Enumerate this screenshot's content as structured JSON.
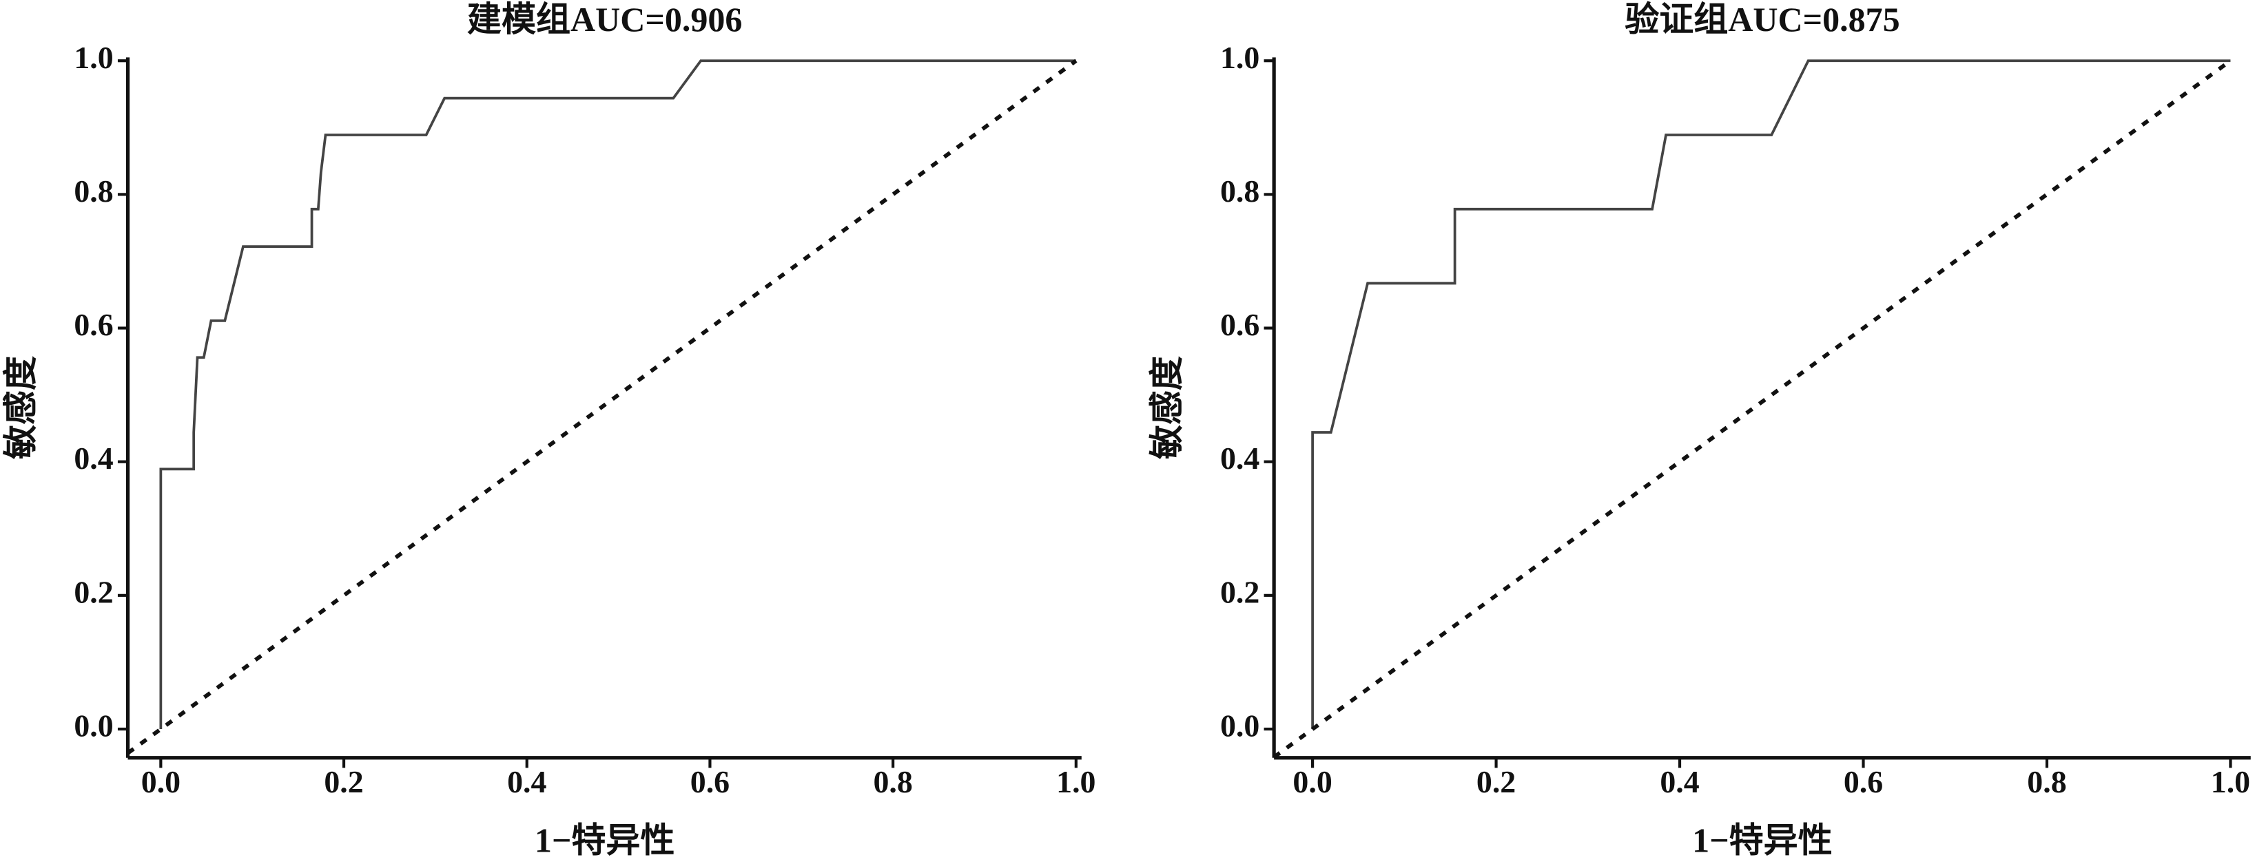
{
  "chart_data": [
    {
      "type": "line",
      "title": "建模组AUC=0.906",
      "x_label": "1−特异性",
      "y_label": "敏感度",
      "xlim": [
        -0.036,
        1.006
      ],
      "ylim": [
        -0.043,
        1.005
      ],
      "xticks": [
        {
          "value": 0,
          "label": "0.0"
        },
        0.2,
        0.4,
        0.6,
        0.8,
        {
          "value": 1,
          "label": "1.0"
        }
      ],
      "yticks": [
        {
          "value": 0,
          "label": "0.0"
        },
        0.2,
        0.4,
        0.6,
        0.8,
        {
          "value": 1,
          "label": "1.0"
        }
      ],
      "series": [
        {
          "color": "#444444",
          "style": "solid",
          "x": [
            0,
            0,
            0.036,
            0.036,
            0.04,
            0.047,
            0.055,
            0.07,
            0.09,
            0.165,
            0.165,
            0.172,
            0.175,
            0.18,
            0.29,
            0.31,
            0.56,
            0.59,
            1
          ],
          "values": [
            0,
            0.389,
            0.389,
            0.444,
            0.556,
            0.556,
            0.611,
            0.611,
            0.722,
            0.722,
            0.778,
            0.778,
            0.833,
            0.889,
            0.889,
            0.944,
            0.944,
            1,
            1
          ]
        },
        {
          "color": "#111111",
          "style": "dashed",
          "x": [
            -0.036,
            1
          ],
          "values": [
            -0.036,
            1
          ]
        }
      ]
    },
    {
      "type": "line",
      "title": "验证组AUC=0.875",
      "x_label": "1−特异性",
      "y_label": "敏感度",
      "xlim": [
        -0.042,
        1.022
      ],
      "ylim": [
        -0.043,
        1.005
      ],
      "xticks": [
        {
          "value": 0,
          "label": "0.0"
        },
        0.2,
        0.4,
        0.6,
        0.8,
        {
          "value": 1,
          "label": "1.0"
        }
      ],
      "yticks": [
        {
          "value": 0,
          "label": "0.0"
        },
        0.2,
        0.4,
        0.6,
        0.8,
        {
          "value": 1,
          "label": "1.0"
        }
      ],
      "series": [
        {
          "color": "#444444",
          "style": "solid",
          "x": [
            0,
            0,
            0.02,
            0.06,
            0.155,
            0.155,
            0.37,
            0.385,
            0.5,
            0.54,
            1
          ],
          "values": [
            0,
            0.444,
            0.444,
            0.667,
            0.667,
            0.778,
            0.778,
            0.889,
            0.889,
            1,
            1
          ]
        },
        {
          "color": "#111111",
          "style": "dashed",
          "x": [
            -0.042,
            1
          ],
          "values": [
            -0.042,
            1
          ]
        }
      ]
    }
  ]
}
